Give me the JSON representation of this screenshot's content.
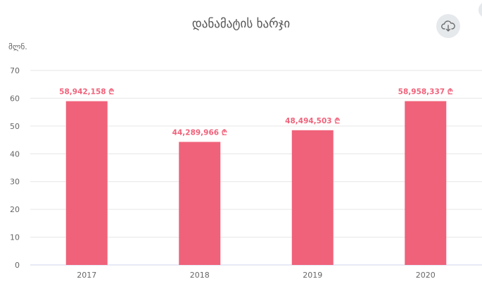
{
  "chart_data": {
    "type": "bar",
    "title": "დანამატის ხარჯი",
    "unit_label": "მლნ.",
    "categories": [
      "2017",
      "2018",
      "2019",
      "2020"
    ],
    "values": [
      58.942158,
      44.289966,
      48.494503,
      58.958337
    ],
    "data_labels": [
      "58,942,158 ₾",
      "44,289,966 ₾",
      "48,494,503 ₾",
      "58,958,337 ₾"
    ],
    "y_ticks": [
      "0",
      "10",
      "20",
      "30",
      "40",
      "50",
      "60",
      "70"
    ],
    "ylim": [
      0,
      70
    ],
    "grid": true,
    "bar_color": "#f0627a"
  },
  "toolbar": {
    "download_icon": "cloud-download-icon"
  }
}
